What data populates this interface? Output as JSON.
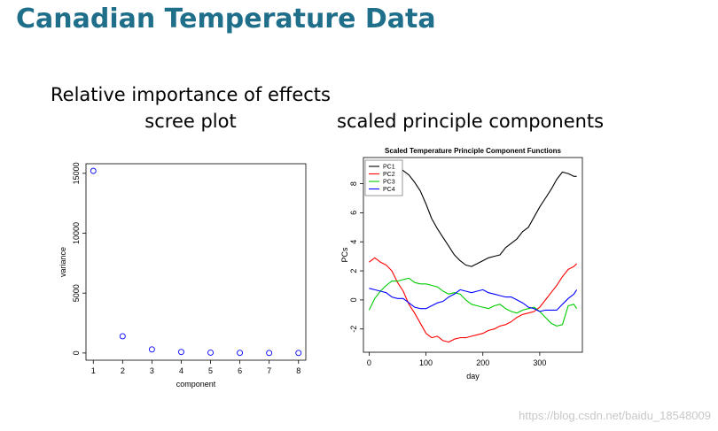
{
  "slide": {
    "title": "Canadian Temperature Data",
    "left_heading_line1": "Relative importance of effects",
    "left_heading_line2": "scree plot",
    "right_heading": "scaled principle components"
  },
  "watermark": "https://blog.csdn.net/baidu_18548009",
  "chart_data": [
    {
      "type": "scatter",
      "title": "",
      "xlabel": "component",
      "ylabel": "variance",
      "x": [
        1,
        2,
        3,
        4,
        5,
        6,
        7,
        8
      ],
      "y": [
        15200,
        1400,
        300,
        90,
        30,
        15,
        8,
        5
      ],
      "xlim": [
        0.75,
        8.25
      ],
      "ylim": [
        -600,
        15800
      ],
      "xticks": [
        "1",
        "2",
        "3",
        "4",
        "5",
        "6",
        "7",
        "8"
      ],
      "yticks": [
        "0",
        "5000",
        "10000",
        "15000"
      ],
      "marker_color": "#0000ff",
      "grid": false
    },
    {
      "type": "line",
      "title": "Scaled Temperature Principle Component Functions",
      "xlabel": "day",
      "ylabel": "PCs",
      "xlim": [
        -10,
        375
      ],
      "ylim": [
        -3.6,
        9.8
      ],
      "xticks": [
        "0",
        "100",
        "200",
        "300"
      ],
      "yticks": [
        "-2",
        "0",
        "2",
        "4",
        "6",
        "8"
      ],
      "legend_position": "top-left",
      "grid": false,
      "x": [
        0,
        10,
        20,
        30,
        40,
        50,
        60,
        70,
        80,
        90,
        100,
        110,
        120,
        130,
        140,
        150,
        160,
        170,
        180,
        190,
        200,
        210,
        220,
        230,
        240,
        250,
        260,
        270,
        280,
        290,
        300,
        310,
        320,
        330,
        340,
        350,
        360,
        365
      ],
      "series": [
        {
          "name": "PC1",
          "color": "#000000",
          "values": [
            8.6,
            9.1,
            9.3,
            9.2,
            9.1,
            9.2,
            8.9,
            8.6,
            8.1,
            7.5,
            6.6,
            5.6,
            4.9,
            4.3,
            3.7,
            3.1,
            2.7,
            2.4,
            2.3,
            2.5,
            2.7,
            2.9,
            3.0,
            3.1,
            3.6,
            3.9,
            4.2,
            4.7,
            5.0,
            5.7,
            6.4,
            7.0,
            7.6,
            8.3,
            8.8,
            8.7,
            8.5,
            8.5
          ]
        },
        {
          "name": "PC2",
          "color": "#ff0000",
          "values": [
            2.6,
            2.9,
            2.6,
            2.4,
            2.0,
            1.2,
            0.6,
            -0.3,
            -0.9,
            -1.6,
            -2.3,
            -2.6,
            -2.5,
            -2.8,
            -2.9,
            -2.7,
            -2.6,
            -2.6,
            -2.5,
            -2.4,
            -2.3,
            -2.1,
            -2.0,
            -1.8,
            -1.7,
            -1.5,
            -1.2,
            -1.0,
            -0.9,
            -0.8,
            -0.5,
            0.0,
            0.5,
            1.0,
            1.6,
            2.1,
            2.3,
            2.5
          ]
        },
        {
          "name": "PC3",
          "color": "#00cc00",
          "values": [
            -0.7,
            0.1,
            0.6,
            1.0,
            1.3,
            1.3,
            1.4,
            1.5,
            1.2,
            1.1,
            1.1,
            1.0,
            0.9,
            0.6,
            0.4,
            0.5,
            0.4,
            0.0,
            -0.3,
            -0.4,
            -0.5,
            -0.6,
            -0.4,
            -0.3,
            -0.6,
            -0.8,
            -0.9,
            -0.7,
            -0.6,
            -0.5,
            -0.8,
            -1.2,
            -1.6,
            -1.8,
            -1.7,
            -0.4,
            -0.3,
            -0.6
          ]
        },
        {
          "name": "PC4",
          "color": "#0000ff",
          "values": [
            0.8,
            0.7,
            0.6,
            0.5,
            0.2,
            0.1,
            0.1,
            -0.2,
            -0.5,
            -0.6,
            -0.6,
            -0.4,
            -0.2,
            -0.1,
            0.2,
            0.4,
            0.7,
            0.6,
            0.5,
            0.6,
            0.7,
            0.5,
            0.4,
            0.3,
            0.2,
            0.2,
            0.0,
            -0.2,
            -0.5,
            -0.6,
            -0.8,
            -0.7,
            -0.7,
            -0.7,
            -0.3,
            0.1,
            0.4,
            0.7
          ]
        }
      ]
    }
  ]
}
